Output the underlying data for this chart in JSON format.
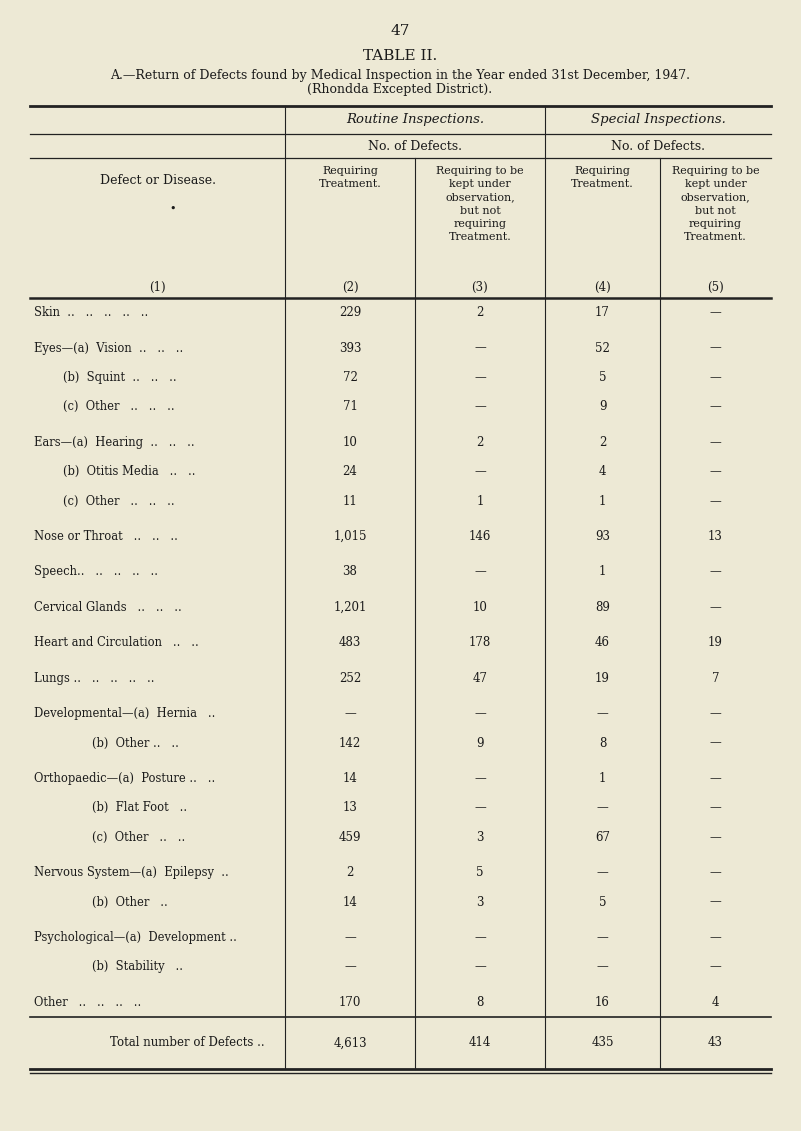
{
  "page_number": "47",
  "title": "TABLE II.",
  "subtitle_line1": "A.—Return of Defects found by Medical Inspection in the Year ended 31st December, 1947.",
  "subtitle_line2": "(Rhondda Excepted District).",
  "bg_color": "#ede9d5",
  "text_color": "#1a1a1a",
  "rows": [
    {
      "label": "Skin  ..   ..   ..   ..   ..",
      "sub": false,
      "cols": [
        "229",
        "2",
        "17",
        "—"
      ]
    },
    {
      "label": "Eyes—(a)  Vision  ..   ..   ..",
      "sub": false,
      "cols": [
        "393",
        "—",
        "52",
        "—"
      ]
    },
    {
      "label": "        (b)  Squint  ..   ..   ..",
      "sub": true,
      "cols": [
        "72",
        "—",
        "5",
        "—"
      ]
    },
    {
      "label": "        (c)  Other   ..   ..   ..",
      "sub": true,
      "cols": [
        "71",
        "—",
        "9",
        "—"
      ]
    },
    {
      "label": "Ears—(a)  Hearing  ..   ..   ..",
      "sub": false,
      "cols": [
        "10",
        "2",
        "2",
        "—"
      ]
    },
    {
      "label": "        (b)  Otitis Media   ..   ..",
      "sub": true,
      "cols": [
        "24",
        "—",
        "4",
        "—"
      ]
    },
    {
      "label": "        (c)  Other   ..   ..   ..",
      "sub": true,
      "cols": [
        "11",
        "1",
        "1",
        "—"
      ]
    },
    {
      "label": "Nose or Throat   ..   ..   ..",
      "sub": false,
      "cols": [
        "1,015",
        "146",
        "93",
        "13"
      ]
    },
    {
      "label": "Speech..   ..   ..   ..   ..",
      "sub": false,
      "cols": [
        "38",
        "—",
        "1",
        "—"
      ]
    },
    {
      "label": "Cervical Glands   ..   ..   ..",
      "sub": false,
      "cols": [
        "1,201",
        "10",
        "89",
        "—"
      ]
    },
    {
      "label": "Heart and Circulation   ..   ..",
      "sub": false,
      "cols": [
        "483",
        "178",
        "46",
        "19"
      ]
    },
    {
      "label": "Lungs ..   ..   ..   ..   ..",
      "sub": false,
      "cols": [
        "252",
        "47",
        "19",
        "7"
      ]
    },
    {
      "label": "Developmental—(a)  Hernia   ..",
      "sub": false,
      "cols": [
        "—",
        "—",
        "—",
        "—"
      ]
    },
    {
      "label": "                (b)  Other ..   ..",
      "sub": true,
      "cols": [
        "142",
        "9",
        "8",
        "—"
      ]
    },
    {
      "label": "Orthopaedic—(a)  Posture ..   ..",
      "sub": false,
      "cols": [
        "14",
        "—",
        "1",
        "—"
      ]
    },
    {
      "label": "                (b)  Flat Foot   ..",
      "sub": true,
      "cols": [
        "13",
        "—",
        "—",
        "—"
      ]
    },
    {
      "label": "                (c)  Other   ..   ..",
      "sub": true,
      "cols": [
        "459",
        "3",
        "67",
        "—"
      ]
    },
    {
      "label": "Nervous System—(a)  Epilepsy  ..",
      "sub": false,
      "cols": [
        "2",
        "5",
        "—",
        "—"
      ]
    },
    {
      "label": "                (b)  Other   ..",
      "sub": true,
      "cols": [
        "14",
        "3",
        "5",
        "—"
      ]
    },
    {
      "label": "Psychological—(a)  Development ..",
      "sub": false,
      "cols": [
        "—",
        "—",
        "—",
        "—"
      ]
    },
    {
      "label": "                (b)  Stability   ..",
      "sub": true,
      "cols": [
        "—",
        "—",
        "—",
        "—"
      ]
    },
    {
      "label": "Other   ..   ..   ..   ..",
      "sub": false,
      "cols": [
        "170",
        "8",
        "16",
        "4"
      ]
    }
  ],
  "total_label": "Total number of Defects ..",
  "total_cols": [
    "4,613",
    "414",
    "435",
    "43"
  ],
  "font_family": "DejaVu Serif"
}
